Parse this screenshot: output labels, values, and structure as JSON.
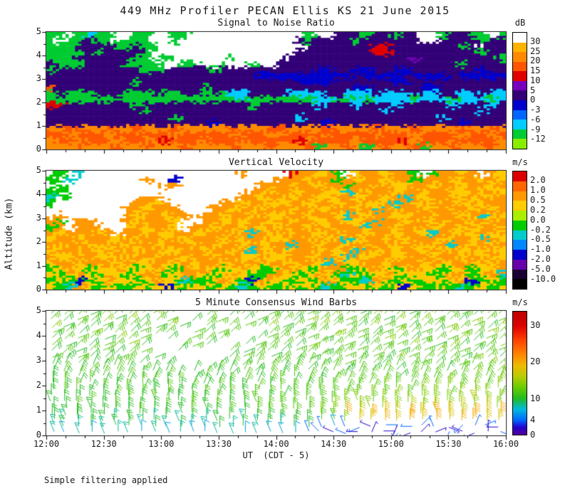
{
  "title": "449 MHz Profiler PECAN Ellis KS 21 June 2015",
  "footer": "Simple filtering applied",
  "x_axis": {
    "label": "UT  (CDT - 5)",
    "tick_labels": [
      "12:00",
      "12:30",
      "13:00",
      "13:30",
      "14:00",
      "14:30",
      "15:00",
      "15:30",
      "16:00"
    ]
  },
  "y_axis": {
    "label": "Altitude (km)",
    "tick_labels": [
      "0",
      "1",
      "2",
      "3",
      "4",
      "5"
    ],
    "min": 0,
    "max": 5
  },
  "chart_data": [
    {
      "type": "heatmap",
      "title": "Signal to Noise Ratio",
      "unit": "dB",
      "x_range": [
        "12:00",
        "16:00"
      ],
      "y_range_km": [
        0,
        5
      ],
      "colorbar_tick_labels": [
        "30",
        "25",
        "20",
        "15",
        "10",
        "5",
        "0",
        "-3",
        "-6",
        "-9",
        "-12"
      ],
      "colorbar_colors_top_to_bottom": [
        "#ffffff",
        "#ffb300",
        "#ff8a00",
        "#ff5500",
        "#e00000",
        "#7700bb",
        "#330077",
        "#0000cc",
        "#0066ff",
        "#00ccff",
        "#00cc33",
        "#88ee00"
      ],
      "palette": {
        ".": "#ffffff",
        "1": "#ffb300",
        "2": "#ff8a00",
        "3": "#ff5500",
        "4": "#e00000",
        "5": "#7700bb",
        "6": "#330077",
        "7": "#0000cc",
        "8": "#0066ff",
        "9": "#00ccff",
        "a": "#00cc33",
        "b": "#88ee00"
      },
      "grid_rows": [
        [
          "aa.a9aa.",
          ".aa..aa.",
          "........",
          "...a..66",
          "6a66a66.",
          ".a66aa.a"
        ],
        [
          "a.aa6aa.",
          "aaa..a..",
          "........",
          "..6a6666",
          "a666666.",
          ".6666a66"
        ],
        [
          "aaa6666a",
          "a6aa....",
          "........",
          "...66666",
          "66446666",
          "666a6.66"
        ],
        [
          "aaaa6a66",
          "66a.....",
          "........",
          "..666666",
          "66446666",
          "66666a66"
        ],
        [
          "aaa66666",
          "6aa.a...",
          "...a....",
          ".6666666",
          "66666656",
          "6666666a"
        ],
        [
          "6aaa6666",
          "aaaa..aa",
          "..a..a..",
          "66666666",
          "66666666",
          "666a6666"
        ],
        [
          "a6666666",
          "66aa6666",
          "6a666666",
          "66667766",
          "77667766",
          "66666766"
        ],
        [
          "66666666",
          "66666666",
          "66666677",
          "77777777",
          "67777677",
          "77677777"
        ],
        [
          "66666666",
          "6a666666",
          "66666666",
          "66777766",
          "66667766",
          "66666666"
        ],
        [
          "36666666",
          "66666666",
          "a6666666",
          "66666666",
          "77666667",
          "76666666"
        ],
        [
          "a6aaa666",
          "aaa6aa66",
          "a6a99666",
          "69999669",
          "99699969",
          "96699699"
        ],
        [
          "aaaaaaaa",
          "aaaaaaaa",
          "aaaa9aaa",
          "aaaa99aa",
          "9a9999a9",
          "99a999a9"
        ],
        [
          "44666666",
          "6a666666",
          "66666a66",
          "66669666",
          "96669666",
          "66966696"
        ],
        [
          "66666666",
          "66a66666",
          "66666666",
          "66666666",
          "66696666",
          "66666966"
        ],
        [
          "66666666",
          "66666a66",
          "66666666",
          "66966666",
          "66666666",
          "69666666"
        ],
        [
          "66666666",
          "66666666",
          "67666666",
          "66666766",
          "66666666",
          "66676666"
        ],
        [
          "22322232",
          "23222322",
          "22232223",
          "32222322",
          "22322232",
          "22232232"
        ],
        [
          "33233323",
          "32333233",
          "33323332",
          "23333233",
          "33233323",
          "33323323"
        ],
        [
          "23323332",
          "33234333",
          "23332333",
          "33423333",
          "23333423",
          "33233332"
        ],
        [
          "22232223",
          "22322232",
          "22232223",
          "2223a223",
          "2a23223a",
          "22322232"
        ]
      ]
    },
    {
      "type": "heatmap",
      "title": "Vertical Velocity",
      "unit": "m/s",
      "x_range": [
        "12:00",
        "16:00"
      ],
      "y_range_km": [
        0,
        5
      ],
      "colorbar_tick_labels": [
        "2.0",
        "1.0",
        "0.5",
        "0.2",
        "0.0",
        "-0.2",
        "-0.5",
        "-1.0",
        "-2.0",
        "-5.0",
        "-10.0"
      ],
      "colorbar_colors_top_to_bottom": [
        "#dd0000",
        "#ff6600",
        "#ff9900",
        "#ffcc00",
        "#aaee00",
        "#00cc00",
        "#00cccc",
        "#0088ff",
        "#0000cc",
        "#6600aa",
        "#1a0033",
        "#000000"
      ],
      "palette": {
        ".": "#ffffff",
        "1": "#dd0000",
        "2": "#ff6600",
        "3": "#ff9900",
        "4": "#ffcc00",
        "5": "#aaee00",
        "6": "#00cc00",
        "7": "#00cccc",
        "8": "#0088ff",
        "9": "#0000cc",
        "a": "#6600aa",
        "b": "#1a0033"
      },
      "grid_rows": [
        [
          ".6.7....",
          "........",
          "....3...",
          ".133436.",
          "4334336.",
          "63343.34"
        ],
        [
          "6.7.....",
          "..3..9..",
          "........",
          "33343363",
          "43343363",
          "33433434"
        ],
        [
          ".6......",
          "....33..",
          "......33",
          "34334336",
          "33434433",
          "43343343"
        ],
        [
          "66......",
          "........",
          ".....334",
          "33433447",
          "34334334",
          "33443434"
        ],
        [
          "7.6.....",
          "..33....",
          "....3343",
          "34334433",
          "43343734",
          "33434343"
        ],
        [
          "6.......",
          ".3343...",
          "..334334",
          "43343343",
          "34437343",
          "43343433"
        ],
        [
          "........",
          "334333..",
          ".3343343",
          "34334433",
          "43734334",
          "33434343"
        ],
        [
          ".3......",
          "3433433.",
          "33433434",
          "43343347",
          "34334433",
          "43343734"
        ],
        [
          "36.33...",
          "343334..",
          "33434334",
          "34334334",
          "43733434",
          "34334343"
        ],
        [
          "63.333..",
          "434334.3",
          "34334343",
          "43343433",
          "37334343",
          "43343434"
        ],
        [
          "3433343.",
          "33434334",
          "43343734",
          "34334343",
          "34334334",
          "73434343"
        ],
        [
          "43343334",
          "34334343",
          "33434334",
          "43343437",
          "43343433",
          "34334734"
        ],
        [
          "34334343",
          "43343334",
          "34334343",
          "37334334",
          "34334343",
          "43734343"
        ],
        [
          "43343434",
          "34334433",
          "43343734",
          "34334343",
          "73434334",
          "34343434"
        ],
        [
          "34433443",
          "43343343",
          "34334434",
          "43343347",
          "34334433",
          "43343434"
        ],
        [
          "43343334",
          "34433434",
          "33434343",
          "34334734",
          "43343334",
          "34334343"
        ],
        [
          "64346443",
          "46434634",
          "34643466",
          "43464336",
          "64346434",
          "46436443"
        ],
        [
          "46434644",
          "64346433",
          "46434663",
          "34643467",
          "46434644",
          "64346437"
        ],
        [
          "64696434",
          "46434676",
          "64346934",
          "46464346",
          "67346464",
          "46439646"
        ],
        [
          "46734646",
          "64649464",
          "46467646",
          "64646764",
          "46464946",
          "64676464"
        ]
      ]
    },
    {
      "type": "wind_barbs",
      "title": "5 Minute Consensus Wind Barbs",
      "unit": "m/s",
      "x_range": [
        "12:00",
        "16:00"
      ],
      "y_range_km": [
        0,
        5
      ],
      "colorbar_tick_labels": [
        "30",
        "20",
        "10",
        "4",
        "0"
      ],
      "speed_scale_max": 34,
      "speed_step_ms": 2,
      "dir_step_deg": 22.5,
      "barb_full_ms": 5,
      "speed_color_stops": [
        [
          0,
          "#550099"
        ],
        [
          2,
          "#2200cc"
        ],
        [
          4,
          "#0066ff"
        ],
        [
          7,
          "#00bbdd"
        ],
        [
          10,
          "#22bb22"
        ],
        [
          13,
          "#66cc00"
        ],
        [
          16,
          "#b8cc00"
        ],
        [
          19,
          "#eebb00"
        ],
        [
          22,
          "#ff8800"
        ],
        [
          26,
          "#ff4400"
        ],
        [
          30,
          "#dd0000"
        ],
        [
          34,
          "#bb0000"
        ]
      ],
      "barbs": [
        {
          "alt": 4.875,
          "spd": [
            "566575",
            "6675..",
            "6.5666",
            "566676",
            "576656",
            "766576"
          ],
          "dir": [
            "aaabaa",
            "aaba..",
            "a.aaab",
            "aabaaa",
            "baaaba",
            "aabaaa"
          ]
        },
        {
          "alt": 4.625,
          "spd": [
            "656675",
            "7566.5",
            "66.566",
            "657666",
            "665767",
            "665766"
          ],
          "dir": [
            "aabaab",
            "aaab.a",
            "ab.aba",
            "aabaab",
            "aabaaa",
            "baabab"
          ]
        },
        {
          "alt": 4.375,
          "spd": [
            "756566",
            "66575.",
            "6.6657",
            "566766",
            "576656",
            "676657"
          ],
          "dir": [
            "abaaba",
            "aabab.",
            "a.abaa",
            "babaab",
            "aabbaa",
            "ababaa"
          ]
        },
        {
          "alt": 4.125,
          "spd": [
            "665756",
            "5666.6",
            "566..6",
            "656676",
            "656766",
            "576676"
          ],
          "dir": [
            "baabaa",
            "abaa.b",
            "aba..a",
            "abaaba",
            "babaab",
            "aababa"
          ]
        },
        {
          "alt": 3.875,
          "spd": [
            "566657",
            "66.5.6",
            "66..56",
            "666576",
            "667656",
            "667566"
          ],
          "dir": [
            "aababa",
            "ab.a.b",
            "aa..ab",
            "aabbaa",
            "babaab",
            "abaaba"
          ]
        },
        {
          "alt": 3.625,
          "spd": [
            "656566",
            "75..66",
            "5..566",
            "657666",
            "566676",
            "575667"
          ],
          "dir": [
            "abaaba",
            "ba..ab",
            "a..aba",
            "aabaab",
            "aabbaa",
            "baabab"
          ]
        },
        {
          "alt": 3.375,
          "spd": [
            "565665",
            "66..5.",
            "..6566",
            "566566",
            "666566",
            "766566"
          ],
          "dir": [
            "aababa",
            "ab..a.",
            "..abaa",
            "ababaa",
            "baabab",
            "aabaab"
          ]
        },
        {
          "alt": 3.125,
          "spd": [
            "656556",
            "6.5...",
            "..5665",
            "665666",
            "565766",
            "665765"
          ],
          "dir": [
            "babaab",
            "a.b...",
            "..abab",
            "aabaab",
            "abaaba",
            "aabbaa"
          ]
        },
        {
          "alt": 2.875,
          "spd": [
            "556565",
            "65.5..",
            ".56566",
            "656566",
            "665666",
            "566676"
          ],
          "dir": [
            "99a9a9",
            "9a.a..",
            ".a9a9a",
            "a99aab",
            "9aa9ab",
            "aab9aa"
          ]
        },
        {
          "alt": 2.625,
          "spd": [
            "565656",
            "5655.5",
            "565656",
            "565665",
            "656566",
            "656667"
          ],
          "dir": [
            "999a99",
            "9a99.9",
            "a999a9",
            "99a99a",
            "9a9a99",
            "a99a9a"
          ]
        },
        {
          "alt": 2.375,
          "spd": [
            "556566",
            "655655",
            "655656",
            "566565",
            "666566",
            "666766"
          ],
          "dir": [
            "899999",
            "98999a",
            "99a999",
            "9899a9",
            "999a99",
            "9a9999"
          ]
        },
        {
          "alt": 2.125,
          "spd": [
            "565655",
            "566565",
            "556656",
            "656566",
            "666666",
            "676667"
          ],
          "dir": [
            "889899",
            "989889",
            "998999",
            "899899",
            "999899",
            "989999"
          ]
        },
        {
          "alt": 1.875,
          "spd": [
            "556565",
            "655656",
            "565565",
            "665666",
            "667667",
            "776767"
          ],
          "dir": [
            "888988",
            "898889",
            "988898",
            "889889",
            "898899",
            "889898"
          ]
        },
        {
          "alt": 1.625,
          "spd": [
            "565556",
            "565655",
            "656566",
            "566666",
            "676767",
            "767776"
          ],
          "dir": [
            "888889",
            "888988",
            "898888",
            "988889",
            "888988",
            "898889"
          ]
        },
        {
          "alt": 1.375,
          "spd": [
            "555655",
            "656556",
            "565665",
            "666667",
            "767777",
            "777877"
          ],
          "dir": [
            "788888",
            "887888",
            "888878",
            "888888",
            "788888",
            "888788"
          ]
        },
        {
          "alt": 1.125,
          "spd": [
            "556556",
            "555656",
            "565566",
            "666677",
            "777787",
            "878787"
          ],
          "dir": [
            "888788",
            "888888",
            "788888",
            "888888",
            "878888",
            "888888"
          ]
        },
        {
          "alt": 0.875,
          "spd": [
            "555555",
            "565556",
            "556566",
            "66677a",
            "8a98a9",
            "a98a9a"
          ],
          "dir": [
            "878888",
            "888878",
            "888888",
            "888888",
            "888888",
            "788888"
          ]
        },
        {
          "alt": 0.625,
          "spd": [
            "545554",
            "554545",
            "455455",
            "555667",
            "99a9a9",
            "a9aa99"
          ],
          "dir": [
            "878878",
            "788878",
            "878788",
            "888878",
            "888888",
            "888888"
          ]
        },
        {
          "alt": 0.375,
          "spd": [
            "454545",
            "545454",
            "454545",
            "455232",
            "212122",
            "212221"
          ],
          "dir": [
            "778877",
            "878788",
            "788878",
            "888777",
            "35c14a",
            "7d29b4"
          ]
        },
        {
          "alt": 0.125,
          "spd": [
            "434344",
            "434343",
            "344343",
            "332212",
            "111211",
            "121112"
          ],
          "dir": [
            "777878",
            "787787",
            "877877",
            "787655",
            "49c23a",
            "b1538d"
          ]
        }
      ]
    }
  ]
}
